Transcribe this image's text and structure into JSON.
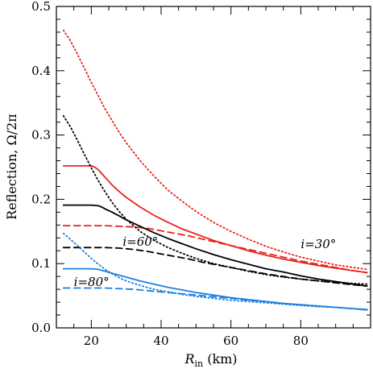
{
  "chart_data": {
    "type": "line",
    "xlabel": {
      "var": "R",
      "sub": "in",
      "unit": " (km)"
    },
    "ylabel": "Reflection, Ω/2π",
    "xlim": [
      10,
      100
    ],
    "ylim": [
      0,
      0.5
    ],
    "x_ticks": [
      20,
      40,
      60,
      80
    ],
    "y_ticks": [
      "0.0",
      "0.1",
      "0.2",
      "0.3",
      "0.4",
      "0.5"
    ],
    "colors": {
      "red": "#e8231a",
      "black": "#000000",
      "blue": "#1d7fe0"
    },
    "annotations": [
      {
        "text": "i=30°",
        "x": 80,
        "y": 0.124
      },
      {
        "text": "i=60°",
        "x": 29,
        "y": 0.128
      },
      {
        "text": "i=80°",
        "x": 15,
        "y": 0.065
      }
    ],
    "series": [
      {
        "color": "red",
        "style": "solid",
        "x": [
          12,
          14,
          16,
          18,
          20,
          21,
          22,
          23,
          24,
          26,
          28,
          30,
          34,
          38,
          42,
          46,
          50,
          55,
          60,
          65,
          70,
          75,
          80,
          85,
          90,
          95,
          99
        ],
        "y": [
          0.252,
          0.252,
          0.252,
          0.252,
          0.252,
          0.25,
          0.246,
          0.24,
          0.234,
          0.222,
          0.212,
          0.203,
          0.188,
          0.175,
          0.164,
          0.154,
          0.146,
          0.136,
          0.128,
          0.12,
          0.113,
          0.107,
          0.102,
          0.097,
          0.093,
          0.089,
          0.086
        ]
      },
      {
        "color": "red",
        "style": "dashed",
        "x": [
          12,
          16,
          20,
          24,
          28,
          32,
          36,
          40,
          44,
          48,
          52,
          56,
          60,
          65,
          70,
          75,
          80,
          85,
          90,
          95,
          99
        ],
        "y": [
          0.159,
          0.159,
          0.159,
          0.159,
          0.158,
          0.157,
          0.155,
          0.151,
          0.147,
          0.143,
          0.138,
          0.133,
          0.128,
          0.122,
          0.116,
          0.11,
          0.104,
          0.099,
          0.094,
          0.089,
          0.086
        ]
      },
      {
        "color": "red",
        "style": "dotted",
        "x": [
          12,
          14,
          16,
          18,
          20,
          22,
          24,
          26,
          28,
          30,
          34,
          38,
          42,
          46,
          50,
          55,
          60,
          65,
          70,
          75,
          80,
          85,
          90,
          95,
          99
        ],
        "y": [
          0.463,
          0.447,
          0.426,
          0.404,
          0.382,
          0.361,
          0.34,
          0.322,
          0.304,
          0.288,
          0.26,
          0.236,
          0.214,
          0.197,
          0.181,
          0.164,
          0.15,
          0.138,
          0.127,
          0.118,
          0.11,
          0.104,
          0.098,
          0.094,
          0.091
        ]
      },
      {
        "color": "black",
        "style": "solid",
        "x": [
          12,
          14,
          16,
          18,
          20,
          22,
          23,
          24,
          26,
          28,
          30,
          34,
          38,
          42,
          46,
          50,
          55,
          60,
          65,
          70,
          75,
          80,
          85,
          90,
          95,
          99
        ],
        "y": [
          0.191,
          0.191,
          0.191,
          0.191,
          0.191,
          0.19,
          0.188,
          0.185,
          0.18,
          0.174,
          0.168,
          0.158,
          0.148,
          0.139,
          0.131,
          0.123,
          0.114,
          0.106,
          0.099,
          0.092,
          0.087,
          0.081,
          0.076,
          0.072,
          0.068,
          0.065
        ]
      },
      {
        "color": "black",
        "style": "dashed",
        "x": [
          12,
          16,
          20,
          24,
          28,
          32,
          36,
          40,
          44,
          48,
          52,
          56,
          60,
          65,
          70,
          75,
          80,
          85,
          90,
          95,
          99
        ],
        "y": [
          0.125,
          0.125,
          0.125,
          0.125,
          0.124,
          0.122,
          0.119,
          0.115,
          0.111,
          0.107,
          0.102,
          0.098,
          0.094,
          0.089,
          0.084,
          0.08,
          0.076,
          0.073,
          0.07,
          0.067,
          0.065
        ]
      },
      {
        "color": "black",
        "style": "dotted",
        "x": [
          12,
          14,
          16,
          18,
          20,
          22,
          24,
          26,
          28,
          30,
          34,
          38,
          42,
          46,
          50,
          55,
          60,
          65,
          70,
          75,
          80,
          85,
          90,
          95,
          99
        ],
        "y": [
          0.33,
          0.313,
          0.292,
          0.27,
          0.249,
          0.229,
          0.211,
          0.195,
          0.181,
          0.169,
          0.15,
          0.136,
          0.125,
          0.116,
          0.108,
          0.1,
          0.094,
          0.088,
          0.083,
          0.079,
          0.076,
          0.073,
          0.071,
          0.069,
          0.068
        ]
      },
      {
        "color": "blue",
        "style": "solid",
        "x": [
          12,
          14,
          16,
          18,
          20,
          22,
          24,
          26,
          28,
          30,
          34,
          38,
          42,
          46,
          50,
          55,
          60,
          65,
          70,
          75,
          80,
          85,
          90,
          95,
          99
        ],
        "y": [
          0.092,
          0.092,
          0.092,
          0.092,
          0.092,
          0.091,
          0.088,
          0.085,
          0.082,
          0.079,
          0.073,
          0.068,
          0.063,
          0.059,
          0.055,
          0.051,
          0.047,
          0.044,
          0.041,
          0.038,
          0.036,
          0.034,
          0.032,
          0.03,
          0.028
        ]
      },
      {
        "color": "blue",
        "style": "dashed",
        "x": [
          12,
          16,
          20,
          24,
          28,
          32,
          36,
          40,
          44,
          48,
          52,
          56,
          60,
          65,
          70,
          75,
          80,
          85,
          90,
          95,
          99
        ],
        "y": [
          0.062,
          0.062,
          0.062,
          0.062,
          0.061,
          0.06,
          0.058,
          0.056,
          0.054,
          0.052,
          0.05,
          0.048,
          0.046,
          0.043,
          0.041,
          0.038,
          0.036,
          0.034,
          0.032,
          0.03,
          0.028
        ]
      },
      {
        "color": "blue",
        "style": "dotted",
        "x": [
          12,
          14,
          16,
          18,
          20,
          22,
          24,
          26,
          28,
          30,
          34,
          38,
          42,
          46,
          50,
          55,
          60,
          65,
          70,
          75,
          80,
          85,
          90,
          95,
          99
        ],
        "y": [
          0.147,
          0.138,
          0.128,
          0.118,
          0.108,
          0.099,
          0.091,
          0.084,
          0.078,
          0.073,
          0.066,
          0.06,
          0.056,
          0.052,
          0.049,
          0.046,
          0.043,
          0.041,
          0.039,
          0.037,
          0.035,
          0.033,
          0.032,
          0.03,
          0.029
        ]
      }
    ]
  }
}
